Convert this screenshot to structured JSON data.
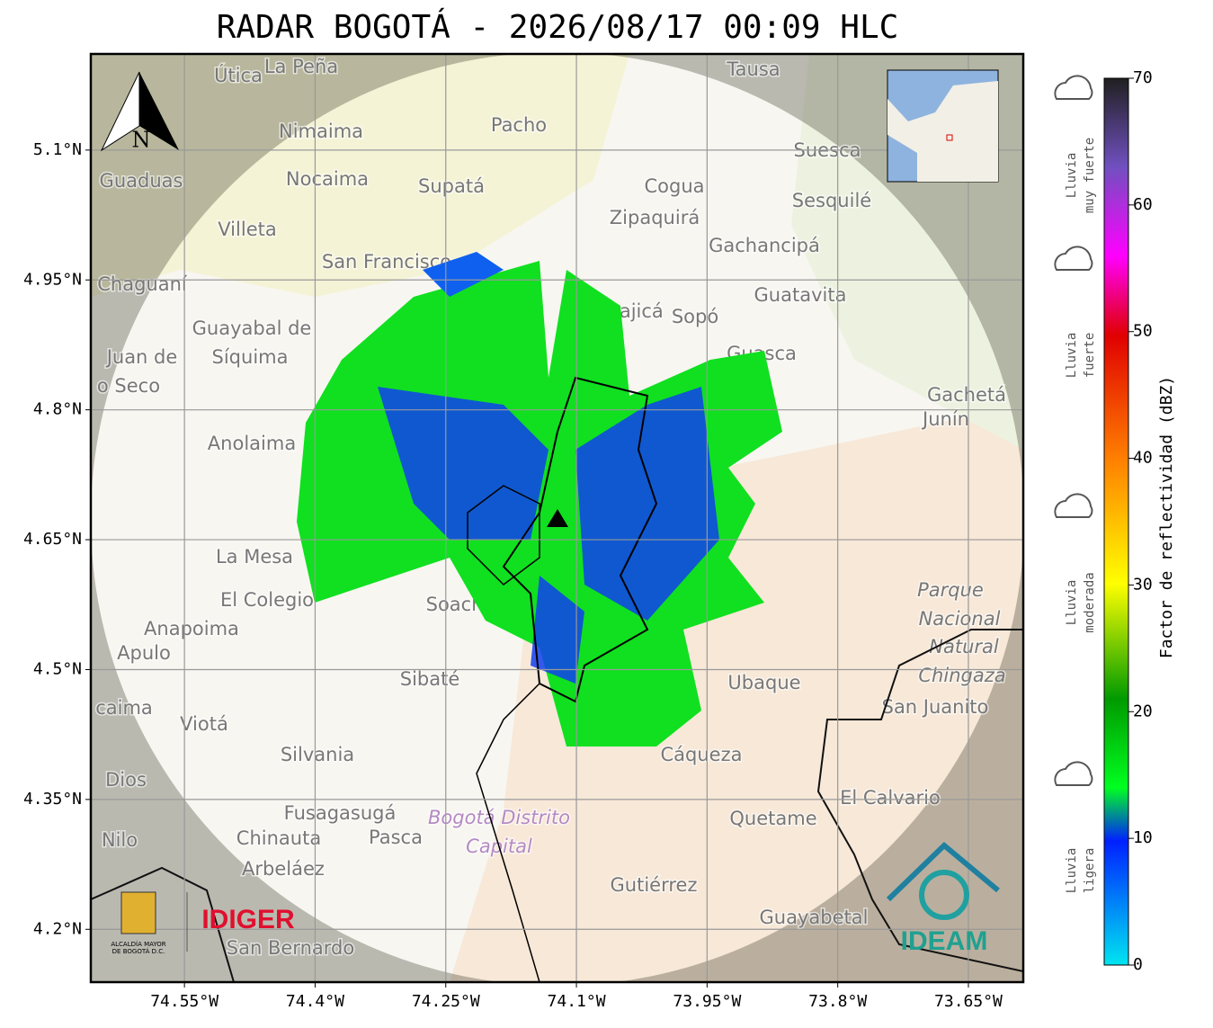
{
  "title": "RADAR BOGOTÁ - 2026/08/17 00:09 HLC",
  "map": {
    "xlim": [
      -74.6575,
      -73.587
    ],
    "ylim": [
      4.139,
      5.211
    ],
    "lat_ticks": [
      {
        "value": 5.1,
        "label": "5.1°N"
      },
      {
        "value": 4.95,
        "label": "4.95°N"
      },
      {
        "value": 4.8,
        "label": "4.8°N"
      },
      {
        "value": 4.65,
        "label": "4.65°N"
      },
      {
        "value": 4.5,
        "label": "4.5°N"
      },
      {
        "value": 4.35,
        "label": "4.35°N"
      },
      {
        "value": 4.2,
        "label": "4.2°N"
      }
    ],
    "lon_ticks": [
      {
        "value": -74.55,
        "label": "74.55°W"
      },
      {
        "value": -74.4,
        "label": "74.4°W"
      },
      {
        "value": -74.25,
        "label": "74.25°W"
      },
      {
        "value": -74.1,
        "label": "74.1°W"
      },
      {
        "value": -73.95,
        "label": "73.95°W"
      },
      {
        "value": -73.8,
        "label": "73.8°W"
      },
      {
        "value": -73.65,
        "label": "73.65°W"
      }
    ],
    "places": [
      "Útica",
      "La Peña",
      "Tausa",
      "Pacho",
      "Nimaima",
      "Guaduas",
      "Nocaima",
      "Supatá",
      "Cogua",
      "Suesca",
      "Sesquilé",
      "Zipaquirá",
      "Villeta",
      "Gachancipá",
      "San Francisco",
      "Chaguaní",
      "Guatavita",
      "Cajicá",
      "Sopó",
      "Guayabal de",
      "Síquima",
      "Juan de",
      "o Seco",
      "Guasca",
      "Gachetá",
      "Junín",
      "Anolaima",
      "La Mesa",
      "El Colegio",
      "Anapoima",
      "Apulo",
      "Soacha",
      "Sibaté",
      "Parque",
      "Nacional",
      "Natural",
      "Chingaza",
      "San Juanito",
      "Ubaque",
      "Viotá",
      "Silvania",
      "Cáqueza",
      "Dios",
      "El Calvario",
      "Fusagasugá",
      "Bogotá Distrito",
      "Capital",
      "Quetame",
      "Nilo",
      "Chinauta",
      "Pasca",
      "Arbeláez",
      "Gutiérrez",
      "Guayabetal",
      "San Bernardo",
      "caima"
    ],
    "north": "N",
    "logos": {
      "alcaldia": [
        "ALCALDÍA MAYOR",
        "DE BOGOTÁ D.C."
      ],
      "idiger": "IDIGER",
      "ideam": "IDEAM"
    }
  },
  "colorbar": {
    "label": "Factor de reflectividad (dBZ)",
    "lim": [
      0,
      70
    ],
    "ticks": [
      0,
      10,
      20,
      30,
      40,
      50,
      60,
      70
    ],
    "categories": [
      [
        "Lluvia",
        "muy fuerte"
      ],
      [
        "Lluvia",
        "fuerte"
      ],
      [
        "Lluvia",
        "moderada"
      ],
      [
        "Lluvia",
        "ligera"
      ]
    ]
  }
}
